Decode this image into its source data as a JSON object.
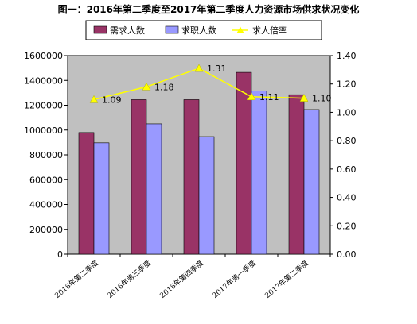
{
  "chart_data": {
    "type": "bar",
    "title": "图一：2016年第二季度至2017年第二季度人力资源市场供求状况变化",
    "categories": [
      "2016年第二季度",
      "2016年第三季度",
      "2016年第四季度",
      "2017年第一季度",
      "2017年第二季度"
    ],
    "series": [
      {
        "name": "需求人数",
        "type": "bar",
        "axis": "left",
        "color": "#993366",
        "values": [
          980000,
          1245000,
          1245000,
          1465000,
          1285000
        ]
      },
      {
        "name": "求职人数",
        "type": "bar",
        "axis": "left",
        "color": "#9999ff",
        "values": [
          897000,
          1050000,
          947000,
          1315000,
          1165000
        ]
      },
      {
        "name": "求人倍率",
        "type": "line",
        "axis": "right",
        "color": "#ffff00",
        "values": [
          1.09,
          1.18,
          1.31,
          1.11,
          1.1
        ]
      }
    ],
    "data_labels": [
      "1.09",
      "1.18",
      "1.31",
      "1.11",
      "1.10"
    ],
    "y_left": {
      "min": 0,
      "max": 1600000,
      "ticks": [
        "0",
        "200000",
        "400000",
        "600000",
        "800000",
        "1000000",
        "1200000",
        "1400000",
        "1600000"
      ]
    },
    "y_right": {
      "min": 0,
      "max": 1.4,
      "ticks": [
        "0.00",
        "0.20",
        "0.40",
        "0.60",
        "0.80",
        "1.00",
        "1.20",
        "1.40"
      ]
    },
    "plot_background": "#c0c0c0",
    "legend_position": "top"
  }
}
